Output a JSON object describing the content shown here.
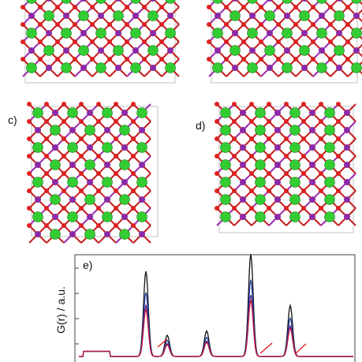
{
  "panels": {
    "c": {
      "label": "c)"
    },
    "d": {
      "label": "d)"
    },
    "e": {
      "label": "e)",
      "y_label": "G(r) / a.u."
    }
  }
}
